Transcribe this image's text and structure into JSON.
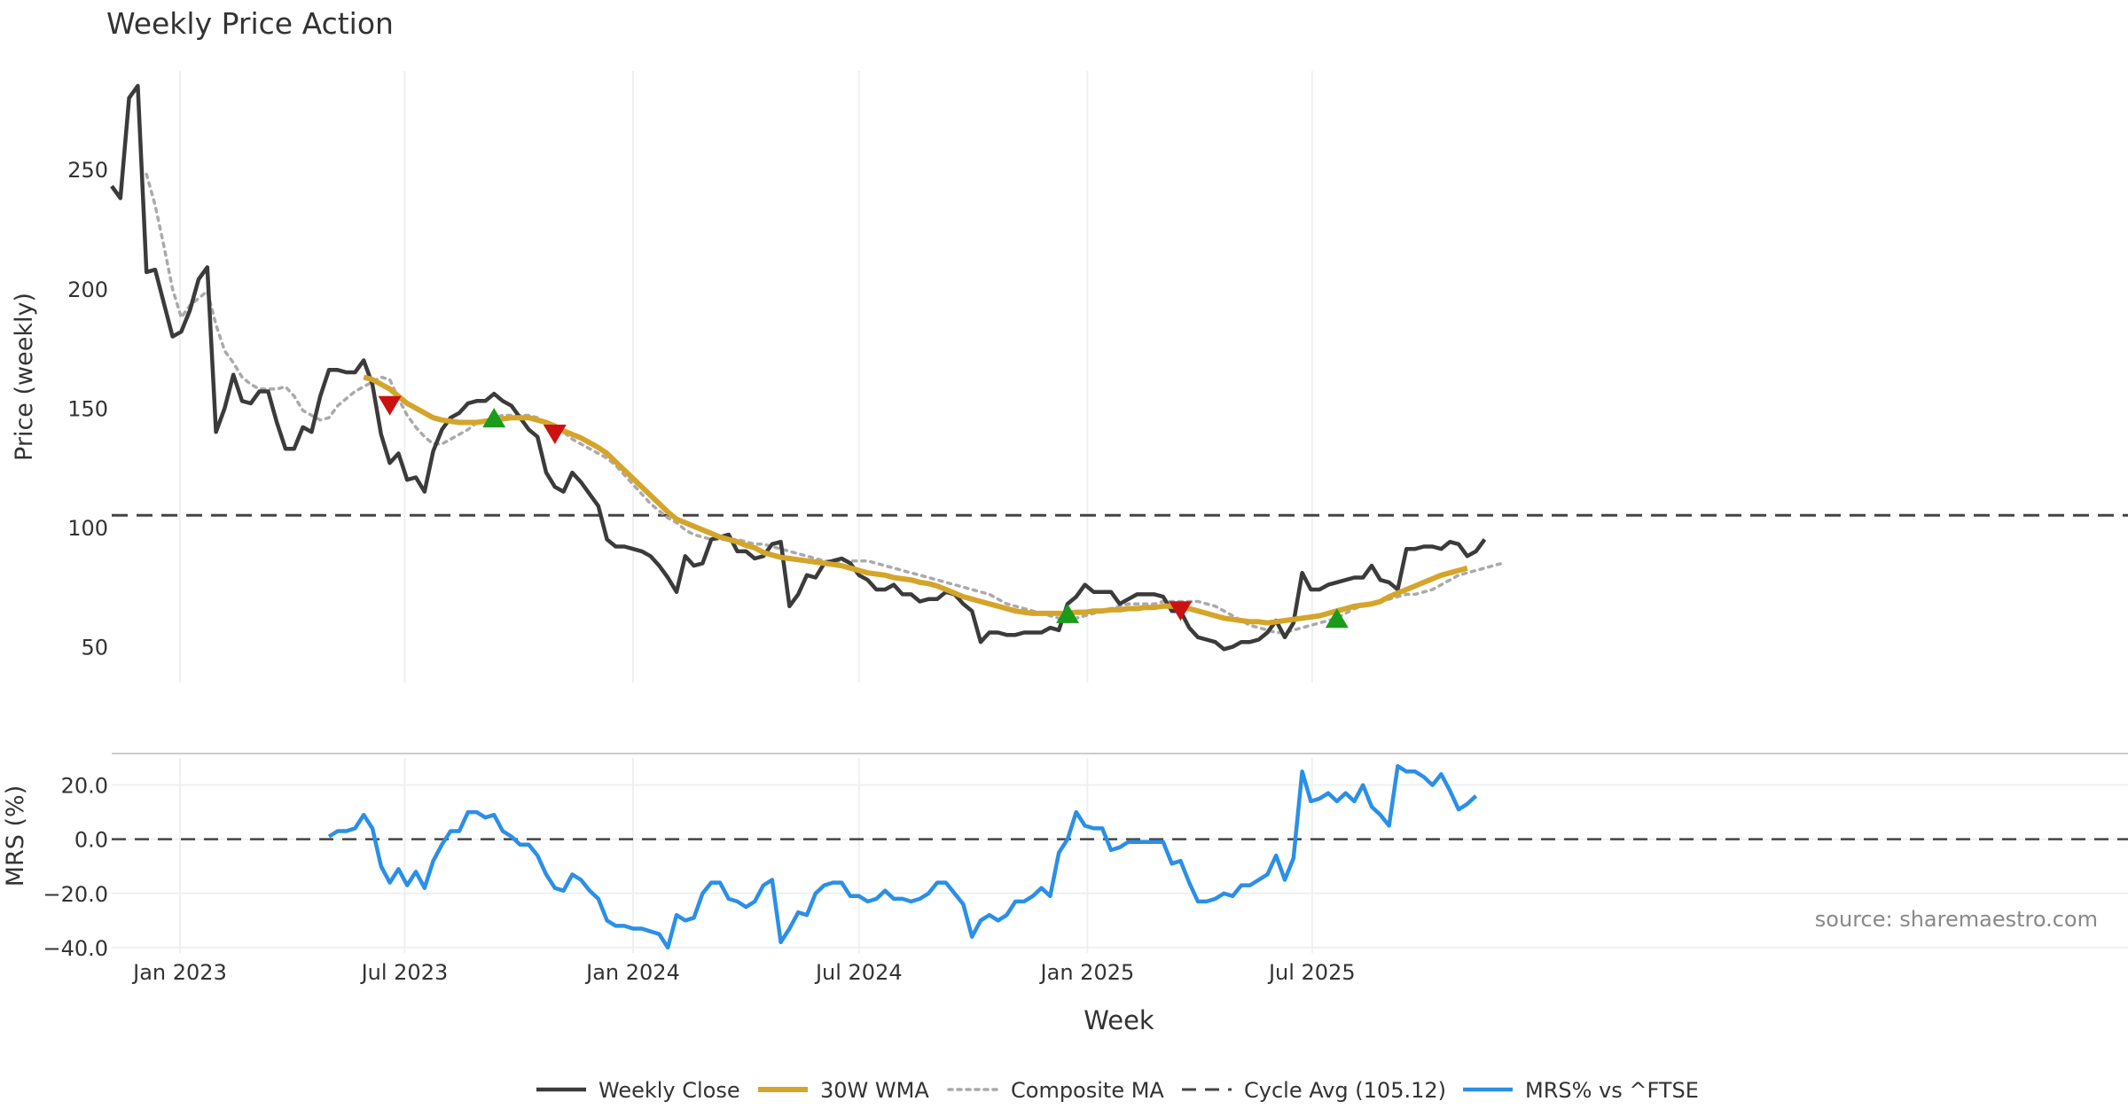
{
  "colors": {
    "close": "#3b3b3b",
    "wma": "#d4a52b",
    "composite": "#aaaaaa",
    "cycle": "#444444",
    "mrs": "#2b8fe6",
    "buy": "#1a9c1a",
    "sell": "#cc1111",
    "grid": "#eef0f2",
    "text": "#333333",
    "source": "#888888"
  },
  "chart_data": {
    "type": "line",
    "title": "Weekly Price Action",
    "xlabel": "Week",
    "source": "source: sharemaestro.com",
    "x_ticks": [
      "Jan 2023",
      "Jul 2023",
      "Jan 2024",
      "Jul 2024",
      "Jan 2025",
      "Jul 2025"
    ],
    "x_start": "2022-11-07",
    "x_step": "1 week",
    "price_panel": {
      "ylabel": "Price (weekly)",
      "yticks": [
        50,
        100,
        150,
        200,
        250
      ],
      "ylim": [
        35,
        295
      ],
      "cycle_avg": 105.12,
      "series": [
        {
          "name": "Weekly Close",
          "start_index": 0,
          "values": [
            243,
            238,
            280,
            285,
            207,
            208,
            194,
            180,
            182,
            191,
            204,
            209,
            140,
            150,
            164,
            153,
            152,
            157,
            157,
            144,
            133,
            133,
            142,
            140,
            155,
            166,
            166,
            165,
            165,
            170,
            160,
            139,
            127,
            131,
            120,
            121,
            115,
            132,
            141,
            146,
            148,
            152,
            153,
            153,
            156,
            153,
            151,
            146,
            141,
            138,
            123,
            117,
            115,
            123,
            119,
            114,
            109,
            95,
            92,
            92,
            91,
            90,
            88,
            84,
            79,
            73,
            88,
            84,
            85,
            95,
            96,
            97,
            90,
            90,
            87,
            88,
            93,
            94,
            67,
            72,
            80,
            79,
            85,
            86,
            87,
            85,
            80,
            78,
            74,
            74,
            76,
            72,
            72,
            69,
            70,
            70,
            73,
            72,
            68,
            65,
            52,
            56,
            56,
            55,
            55,
            56,
            56,
            56,
            58,
            57,
            68,
            71,
            76,
            73,
            73,
            73,
            68,
            70,
            72,
            72,
            72,
            71,
            65,
            65,
            58,
            54,
            53,
            52,
            49,
            50,
            52,
            52,
            53,
            56,
            61,
            54,
            60,
            81,
            74,
            74,
            76,
            77,
            78,
            79,
            79,
            84,
            78,
            77,
            74,
            91,
            91,
            92,
            92,
            91,
            94,
            93,
            88,
            90,
            95
          ]
        },
        {
          "name": "30W WMA",
          "start_index": 29,
          "values": [
            163,
            162,
            160,
            158,
            155,
            152,
            150,
            148,
            146,
            145,
            144.5,
            144,
            144,
            144,
            144.5,
            145,
            145.5,
            146,
            146,
            146,
            145,
            144,
            142.5,
            140.5,
            139,
            137.5,
            135.5,
            133.5,
            131,
            127.5,
            124,
            120.5,
            117,
            113.5,
            110,
            106.5,
            103.5,
            102,
            100.5,
            99,
            97.5,
            96,
            95,
            94,
            92.5,
            91.5,
            89.5,
            88.5,
            87.5,
            87,
            86.5,
            86,
            85.5,
            85,
            84.5,
            84,
            83,
            82,
            81,
            80.5,
            80,
            79,
            78.5,
            78,
            77,
            76.5,
            75.5,
            74,
            72.5,
            71,
            70,
            69,
            68,
            67,
            66,
            65,
            64.5,
            64,
            64,
            64,
            64,
            64,
            64.5,
            64.5,
            65,
            65,
            65.5,
            65.5,
            66,
            66,
            66.5,
            66.5,
            67,
            67,
            66.5,
            66,
            65,
            64,
            63,
            62,
            61.5,
            61,
            60.5,
            60.5,
            60,
            60.5,
            61,
            61.5,
            62,
            62.5,
            63,
            64,
            65,
            66,
            67,
            67.5,
            68,
            69,
            71,
            72.5,
            74,
            75.5,
            77,
            78.5,
            80,
            81,
            82,
            83
          ]
        },
        {
          "name": "Composite MA",
          "start_index": 4,
          "values": [
            248,
            235,
            218,
            200,
            188,
            193,
            196,
            199,
            185,
            174,
            169,
            163,
            160,
            158,
            158,
            158,
            159,
            155,
            149,
            147,
            145,
            146,
            151,
            154,
            157,
            159,
            161,
            163,
            162,
            154,
            147,
            142,
            138,
            135,
            135,
            137,
            139,
            141,
            144,
            145,
            146,
            147,
            147,
            147,
            147,
            146,
            144,
            142,
            140,
            137,
            135,
            133,
            131,
            129,
            126,
            122,
            118,
            114,
            110,
            107,
            104,
            102,
            99,
            97,
            96,
            95,
            95,
            95,
            95,
            94,
            93,
            93,
            92,
            91,
            90,
            89,
            88,
            87,
            86,
            86,
            86,
            86,
            86,
            86,
            85,
            84,
            83,
            82,
            81,
            80,
            79,
            78,
            77,
            76,
            75,
            74,
            73,
            72,
            70,
            68,
            67,
            66,
            65,
            64,
            63,
            62,
            62,
            62,
            63,
            64,
            65,
            66,
            67,
            68,
            68,
            68,
            68,
            69,
            69,
            69,
            69,
            69,
            68,
            67,
            65,
            63,
            61,
            59,
            58,
            57,
            56,
            56,
            57,
            58,
            59,
            60,
            61,
            62,
            64,
            66,
            67,
            68,
            69,
            70,
            71,
            72,
            72,
            73,
            74,
            76,
            78,
            80,
            81,
            82,
            83,
            84,
            85
          ]
        }
      ],
      "buy_signals": [
        {
          "index": 44,
          "value": 146
        },
        {
          "index": 110,
          "value": 64
        },
        {
          "index": 141,
          "value": 62
        }
      ],
      "sell_signals": [
        {
          "index": 32,
          "value": 151
        },
        {
          "index": 51,
          "value": 139
        },
        {
          "index": 123,
          "value": 65
        }
      ]
    },
    "mrs_panel": {
      "ylabel": "MRS (%)",
      "yticks": [
        -40.0,
        -20.0,
        0.0,
        20.0
      ],
      "ytick_labels": [
        "−40.0",
        "−20.0",
        "0.0",
        "20.0"
      ],
      "ylim": [
        -42,
        30
      ],
      "series": [
        {
          "name": "MRS% vs ^FTSE",
          "start_index": 25,
          "values": [
            1,
            3,
            3,
            4,
            9,
            4,
            -10,
            -16,
            -11,
            -17,
            -12,
            -18,
            -8,
            -2,
            3,
            3,
            10,
            10,
            8,
            9,
            3,
            1,
            -2,
            -2,
            -6,
            -13,
            -18,
            -19,
            -13,
            -15,
            -19,
            -22,
            -30,
            -32,
            -32,
            -33,
            -33,
            -34,
            -35,
            -40,
            -28,
            -30,
            -29,
            -20,
            -16,
            -16,
            -22,
            -23,
            -25,
            -23,
            -17,
            -15,
            -38,
            -33,
            -27,
            -28,
            -20,
            -17,
            -16,
            -16,
            -21,
            -21,
            -23,
            -22,
            -19,
            -22,
            -22,
            -23,
            -22,
            -20,
            -16,
            -16,
            -20,
            -24,
            -36,
            -30,
            -28,
            -30,
            -28,
            -23,
            -23,
            -21,
            -18,
            -21,
            -5,
            0,
            10,
            5,
            4,
            4,
            -4,
            -3,
            -1,
            -1,
            -1,
            -1,
            -1,
            -9,
            -8,
            -16,
            -23,
            -23,
            -22,
            -20,
            -21,
            -17,
            -17,
            -15,
            -13,
            -6,
            -15,
            -7,
            25,
            14,
            15,
            17,
            14,
            17,
            14,
            20,
            12,
            9,
            5,
            27,
            25,
            25,
            23,
            20,
            24,
            18,
            11,
            13,
            16
          ]
        }
      ]
    },
    "legend": [
      {
        "label": "Weekly Close",
        "style": "solid",
        "color_key": "close"
      },
      {
        "label": "30W WMA",
        "style": "thick",
        "color_key": "wma"
      },
      {
        "label": "Composite MA",
        "style": "dotted",
        "color_key": "composite"
      },
      {
        "label": "Cycle Avg (105.12)",
        "style": "dashed",
        "color_key": "cycle"
      },
      {
        "label": "MRS% vs ^FTSE",
        "style": "solid-blue",
        "color_key": "mrs"
      }
    ]
  }
}
